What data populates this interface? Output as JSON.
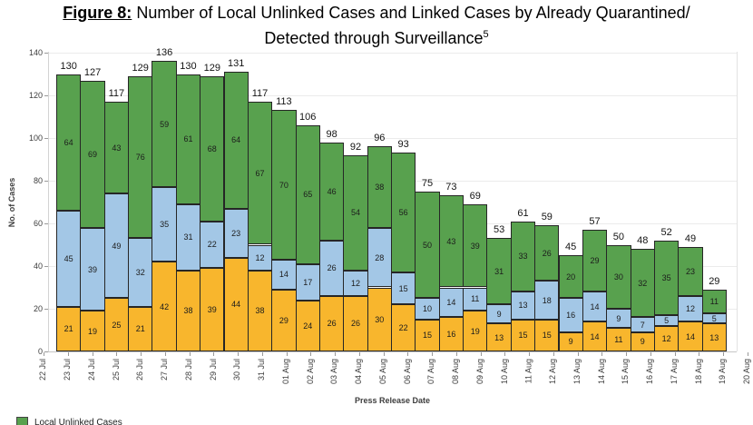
{
  "title": {
    "prefix": "Figure 8:",
    "line1": "Number of Local Unlinked Cases and Linked Cases by Already Quarantined/",
    "line2": "Detected through Surveillance",
    "superscript": "5"
  },
  "chart_data": {
    "type": "bar",
    "stacked": true,
    "xlabel": "Press Release Date",
    "ylabel": "No. of Cases",
    "ylim": [
      0,
      140
    ],
    "yticks": [
      0,
      20,
      40,
      60,
      80,
      100,
      120,
      140
    ],
    "grid": "horizontal",
    "axis_dates": [
      "22 Jul",
      "23 Jul",
      "24 Jul",
      "25 Jul",
      "26 Jul",
      "27 Jul",
      "28 Jul",
      "29 Jul",
      "30 Jul",
      "31 Jul",
      "01 Aug",
      "02 Aug",
      "03 Aug",
      "04 Aug",
      "05 Aug",
      "06 Aug",
      "07 Aug",
      "08 Aug",
      "09 Aug",
      "10 Aug",
      "11 Aug",
      "12 Aug",
      "13 Aug",
      "14 Aug",
      "15 Aug",
      "16 Aug",
      "17 Aug",
      "18 Aug",
      "19 Aug",
      "20 Aug"
    ],
    "stack_order": [
      "already_quarantined",
      "detected_surveillance",
      "unlinked"
    ],
    "colors": {
      "already_quarantined": "#F8B62D",
      "detected_surveillance": "#A3C7E6",
      "unlinked": "#58A14E"
    },
    "bars": [
      {
        "date": "23 Jul",
        "already_quarantined": 21,
        "detected_surveillance": 45,
        "unlinked": 64,
        "total": 130
      },
      {
        "date": "24 Jul",
        "already_quarantined": 19,
        "detected_surveillance": 39,
        "unlinked": 69,
        "total": 127
      },
      {
        "date": "25 Jul",
        "already_quarantined": 25,
        "detected_surveillance": 49,
        "unlinked": 43,
        "total": 117
      },
      {
        "date": "26 Jul",
        "already_quarantined": 21,
        "detected_surveillance": 32,
        "unlinked": 76,
        "total": 129
      },
      {
        "date": "27 Jul",
        "already_quarantined": 42,
        "detected_surveillance": 35,
        "unlinked": 59,
        "total": 136
      },
      {
        "date": "28 Jul",
        "already_quarantined": 38,
        "detected_surveillance": 31,
        "unlinked": 61,
        "total": 130
      },
      {
        "date": "29 Jul",
        "already_quarantined": 39,
        "detected_surveillance": 22,
        "unlinked": 68,
        "total": 129
      },
      {
        "date": "30 Jul",
        "already_quarantined": 44,
        "detected_surveillance": 23,
        "unlinked": 64,
        "total": 131
      },
      {
        "date": "31 Jul",
        "already_quarantined": 38,
        "detected_surveillance": 12,
        "unlinked": 67,
        "total": 117
      },
      {
        "date": "01 Aug",
        "already_quarantined": 29,
        "detected_surveillance": 14,
        "unlinked": 70,
        "total": 113
      },
      {
        "date": "02 Aug",
        "already_quarantined": 24,
        "detected_surveillance": 17,
        "unlinked": 65,
        "total": 106
      },
      {
        "date": "03 Aug",
        "already_quarantined": 26,
        "detected_surveillance": 26,
        "unlinked": 46,
        "total": 98
      },
      {
        "date": "04 Aug",
        "already_quarantined": 26,
        "detected_surveillance": 12,
        "unlinked": 54,
        "total": 92
      },
      {
        "date": "05 Aug",
        "already_quarantined": 30,
        "detected_surveillance": 28,
        "unlinked": 38,
        "total": 96
      },
      {
        "date": "06 Aug",
        "already_quarantined": 22,
        "detected_surveillance": 15,
        "unlinked": 56,
        "total": 93
      },
      {
        "date": "07 Aug",
        "already_quarantined": 15,
        "detected_surveillance": 10,
        "unlinked": 50,
        "total": 75
      },
      {
        "date": "08 Aug",
        "already_quarantined": 16,
        "detected_surveillance": 14,
        "unlinked": 43,
        "total": 73
      },
      {
        "date": "09 Aug",
        "already_quarantined": 19,
        "detected_surveillance": 11,
        "unlinked": 39,
        "total": 69
      },
      {
        "date": "10 Aug",
        "already_quarantined": 13,
        "detected_surveillance": 9,
        "unlinked": 31,
        "total": 53
      },
      {
        "date": "11 Aug",
        "already_quarantined": 15,
        "detected_surveillance": 13,
        "unlinked": 33,
        "total": 61
      },
      {
        "date": "12 Aug",
        "already_quarantined": 15,
        "detected_surveillance": 18,
        "unlinked": 26,
        "total": 59
      },
      {
        "date": "13 Aug",
        "already_quarantined": 9,
        "detected_surveillance": 16,
        "unlinked": 20,
        "total": 45
      },
      {
        "date": "14 Aug",
        "already_quarantined": 14,
        "detected_surveillance": 14,
        "unlinked": 29,
        "total": 57
      },
      {
        "date": "15 Aug",
        "already_quarantined": 11,
        "detected_surveillance": 9,
        "unlinked": 30,
        "total": 50
      },
      {
        "date": "16 Aug",
        "already_quarantined": 9,
        "detected_surveillance": 7,
        "unlinked": 32,
        "total": 48
      },
      {
        "date": "17 Aug",
        "already_quarantined": 12,
        "detected_surveillance": 5,
        "unlinked": 35,
        "total": 52
      },
      {
        "date": "18 Aug",
        "already_quarantined": 14,
        "detected_surveillance": 12,
        "unlinked": 23,
        "total": 49
      },
      {
        "date": "19 Aug",
        "already_quarantined": 13,
        "detected_surveillance": 5,
        "unlinked": 11,
        "total": 29
      }
    ]
  },
  "legend": {
    "items": [
      {
        "label": "Local Unlinked Cases",
        "color": "#58A14E"
      }
    ]
  }
}
